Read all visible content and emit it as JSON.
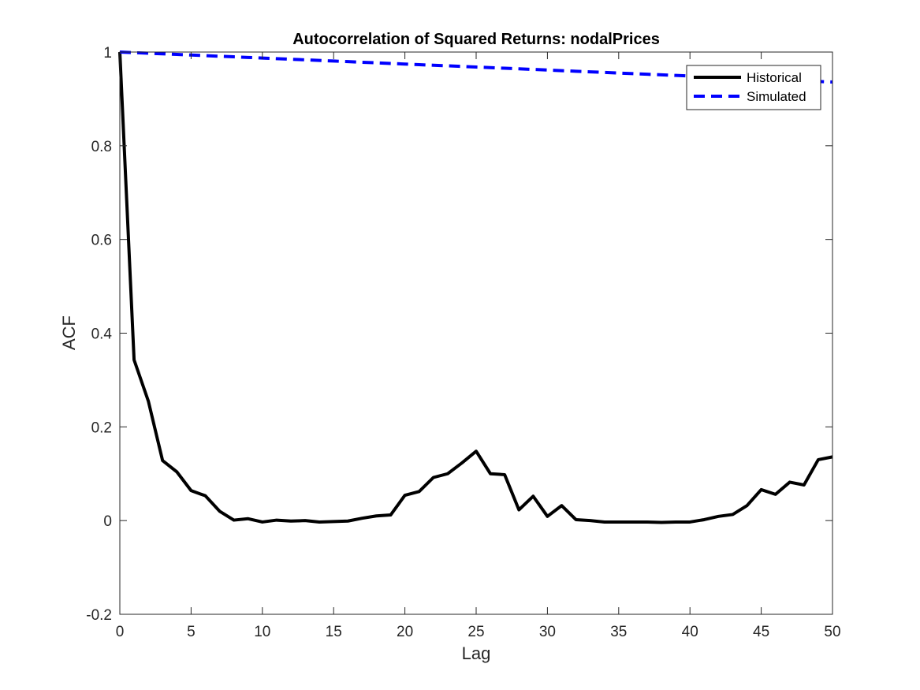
{
  "chart_data": {
    "type": "line",
    "title": "Autocorrelation of Squared Returns: nodalPrices",
    "xlabel": "Lag",
    "ylabel": "ACF",
    "xlim": [
      0,
      50
    ],
    "ylim": [
      -0.2,
      1
    ],
    "xticks": [
      "0",
      "5",
      "10",
      "15",
      "20",
      "25",
      "30",
      "35",
      "40",
      "45",
      "50"
    ],
    "yticks": [
      "-0.2",
      "0",
      "0.2",
      "0.4",
      "0.6",
      "0.8",
      "1"
    ],
    "grid": false,
    "legend_position": "top-right",
    "x": [
      0,
      1,
      2,
      3,
      4,
      5,
      6,
      7,
      8,
      9,
      10,
      11,
      12,
      13,
      14,
      15,
      16,
      17,
      18,
      19,
      20,
      21,
      22,
      23,
      24,
      25,
      26,
      27,
      28,
      29,
      30,
      31,
      32,
      33,
      34,
      35,
      36,
      37,
      38,
      39,
      40,
      41,
      42,
      43,
      44,
      45,
      46,
      47,
      48,
      49,
      50
    ],
    "series": [
      {
        "name": "Historical",
        "color": "#000000",
        "style": "solid",
        "values": [
          1.0,
          0.343,
          0.255,
          0.128,
          0.104,
          0.064,
          0.053,
          0.02,
          0.001,
          0.004,
          -0.003,
          0.001,
          -0.001,
          0.0,
          -0.003,
          -0.002,
          -0.001,
          0.005,
          0.01,
          0.012,
          0.054,
          0.062,
          0.092,
          0.1,
          0.123,
          0.148,
          0.1,
          0.098,
          0.023,
          0.052,
          0.009,
          0.032,
          0.002,
          0.0,
          -0.003,
          -0.003,
          -0.003,
          -0.003,
          -0.004,
          -0.003,
          -0.003,
          0.002,
          0.009,
          0.013,
          0.032,
          0.066,
          0.056,
          0.082,
          0.076,
          0.13,
          0.136
        ]
      },
      {
        "name": "Simulated",
        "color": "#0000ff",
        "style": "dashed",
        "values": [
          1.0,
          0.9987,
          0.9974,
          0.9962,
          0.9949,
          0.9936,
          0.9923,
          0.991,
          0.9898,
          0.9885,
          0.9872,
          0.9859,
          0.9846,
          0.9834,
          0.9821,
          0.9808,
          0.9795,
          0.9782,
          0.977,
          0.9757,
          0.9744,
          0.9731,
          0.9718,
          0.9706,
          0.9693,
          0.968,
          0.9667,
          0.9654,
          0.9642,
          0.9629,
          0.9616,
          0.9603,
          0.959,
          0.9578,
          0.9565,
          0.9552,
          0.9539,
          0.9526,
          0.9514,
          0.9501,
          0.9488,
          0.9475,
          0.9462,
          0.945,
          0.9437,
          0.9424,
          0.9411,
          0.9398,
          0.9386,
          0.9373,
          0.936
        ]
      }
    ]
  }
}
